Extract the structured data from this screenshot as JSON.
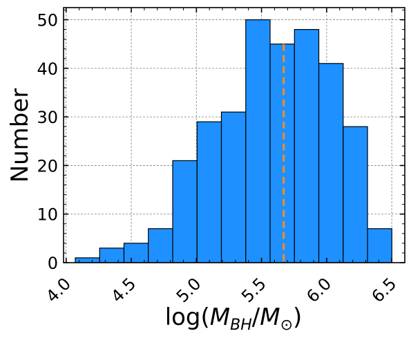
{
  "chart_data": {
    "type": "bar",
    "bin_edges": [
      4.07,
      4.257,
      4.444,
      4.631,
      4.818,
      5.005,
      5.192,
      5.379,
      5.566,
      5.753,
      5.94,
      6.127,
      6.314,
      6.501
    ],
    "values": [
      1,
      3,
      4,
      7,
      21,
      29,
      31,
      50,
      45,
      48,
      41,
      28,
      7
    ],
    "vertical_line": {
      "x": 5.67,
      "color": "#ff8c1a",
      "style": "dashed"
    },
    "xlabel": "log(M_BH/M_⊙)",
    "ylabel": "Number",
    "xlim": [
      3.98,
      6.6
    ],
    "ylim": [
      0,
      52.5
    ],
    "x_ticks": [
      "4.0",
      "4.5",
      "5.0",
      "5.5",
      "6.0",
      "6.5"
    ],
    "y_ticks": [
      "0",
      "10",
      "20",
      "30",
      "40",
      "50"
    ],
    "grid": true,
    "bar_color": "#1e90ff"
  }
}
